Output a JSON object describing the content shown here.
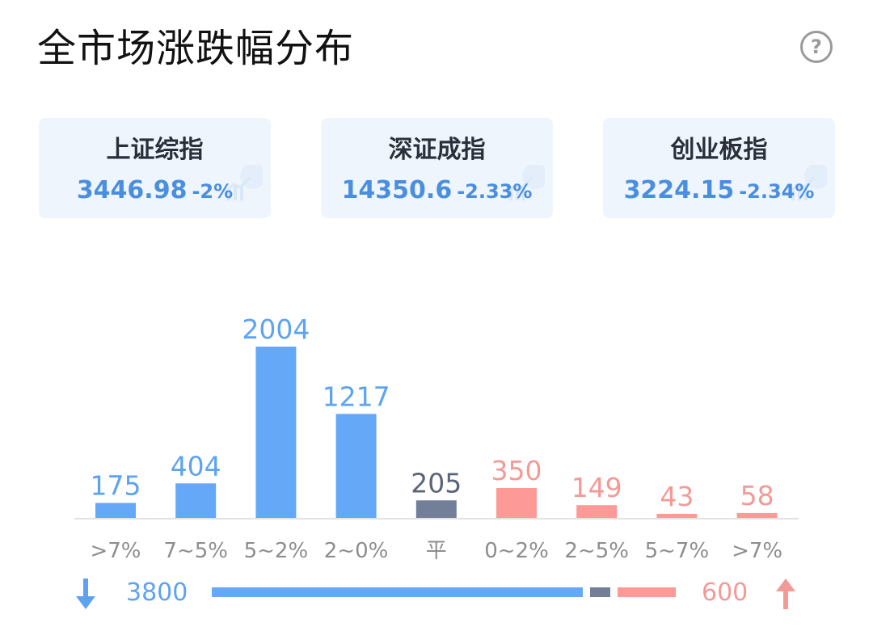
{
  "header": {
    "title": "全市场涨跌幅分布",
    "help_icon": "question-circle-icon",
    "help_label": "?"
  },
  "indices": [
    {
      "name": "上证综指",
      "value": "3446.98",
      "change": "-2%",
      "icon": "trend-chart-icon"
    },
    {
      "name": "深证成指",
      "value": "14350.6",
      "change": "-2.33%",
      "icon": "trend-chart-icon"
    },
    {
      "name": "创业板指",
      "value": "3224.15",
      "change": "-2.34%",
      "icon": "trend-chart-icon"
    }
  ],
  "colors": {
    "down": "#64a8f7",
    "flat": "#737f99",
    "up": "#fd9a97",
    "down_text": "#5ea3f0",
    "flat_text": "#5c6578",
    "up_text": "#f39a97",
    "axis_text": "#8d8d8d",
    "card_bg": "#eef5fc"
  },
  "chart_data": {
    "type": "bar",
    "categories": [
      ">7%",
      "7~5%",
      "5~2%",
      "2~0%",
      "平",
      "0~2%",
      "2~5%",
      "5~7%",
      ">7%"
    ],
    "values": [
      175,
      404,
      2004,
      1217,
      205,
      350,
      149,
      43,
      58
    ],
    "groups": [
      "down",
      "down",
      "down",
      "down",
      "flat",
      "up",
      "up",
      "up",
      "up"
    ],
    "ylim": [
      0,
      2004
    ],
    "grid": false
  },
  "summary": {
    "down_count": "3800",
    "up_count": "600",
    "down_icon": "arrow-down-icon",
    "up_icon": "arrow-up-icon",
    "ratio": {
      "down": 3800,
      "flat": 205,
      "up": 600
    }
  }
}
